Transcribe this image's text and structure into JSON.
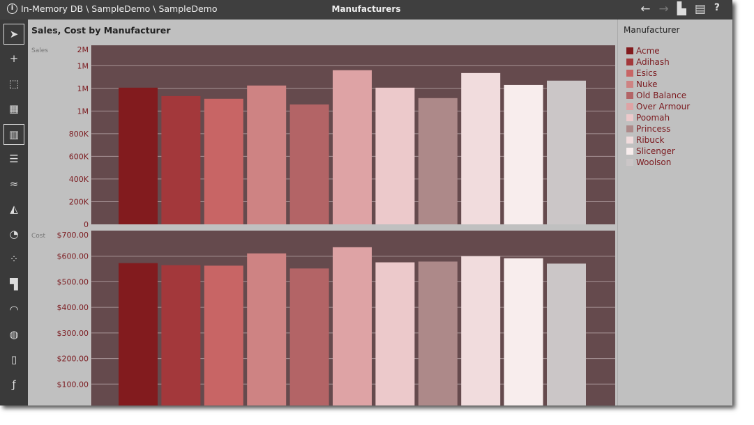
{
  "titlebar": {
    "breadcrumb": "In-Memory DB \\ SampleDemo \\ SampleDemo",
    "title": "Manufacturers",
    "icons": [
      "back-arrow-icon",
      "forward-arrow-icon",
      "save-icon",
      "print-icon",
      "help-icon"
    ]
  },
  "tools": [
    "pointer-icon",
    "add-pointer-icon",
    "select-region-icon",
    "pivot-grid-icon",
    "column-chart-icon",
    "bar-chart-icon",
    "line-chart-icon",
    "area-chart-icon",
    "pie-chart-icon",
    "scatter-icon",
    "treemap-icon",
    "gauge-icon",
    "map-icon",
    "card-icon",
    "formula-chart-icon"
  ],
  "legend": {
    "title": "Manufacturer"
  },
  "colors": {
    "plot_bg": "#654a4d",
    "axis_text": "#7b1a1f",
    "grid": "#a89597"
  },
  "chart_data": {
    "type": "bar",
    "title": "Sales, Cost by Manufacturer",
    "categories": [
      "Acme",
      "Adihash",
      "Esics",
      "Nuke",
      "Old Balance",
      "Over Armour",
      "Poomah",
      "Princess",
      "Ribuck",
      "Slicenger",
      "Woolson"
    ],
    "category_colors": [
      "#821b1e",
      "#a3383b",
      "#c86565",
      "#ce8383",
      "#b36466",
      "#dea3a5",
      "#ecc9cb",
      "#ad8989",
      "#f1dcdd",
      "#f8eded",
      "#cbc6c7"
    ],
    "panels": [
      {
        "name": "Sales",
        "ylim": [
          0,
          1580000
        ],
        "ticks": [
          {
            "v": 0,
            "l": "0"
          },
          {
            "v": 200000,
            "l": "200K"
          },
          {
            "v": 400000,
            "l": "400K"
          },
          {
            "v": 600000,
            "l": "600K"
          },
          {
            "v": 800000,
            "l": "800K"
          },
          {
            "v": 1000000,
            "l": "1M"
          },
          {
            "v": 1200000,
            "l": "1M"
          },
          {
            "v": 1400000,
            "l": "1M"
          },
          {
            "v": 1560000,
            "l": "2M"
          }
        ],
        "values": [
          1206000,
          1132000,
          1108000,
          1225000,
          1058000,
          1360000,
          1206000,
          1114000,
          1335000,
          1230000,
          1268000
        ]
      },
      {
        "name": "Cost",
        "ylim": [
          0,
          700
        ],
        "ticks": [
          {
            "v": 100,
            "l": "$100.00"
          },
          {
            "v": 200,
            "l": "$200.00"
          },
          {
            "v": 300,
            "l": "$300.00"
          },
          {
            "v": 400,
            "l": "$400.00"
          },
          {
            "v": 500,
            "l": "$500.00"
          },
          {
            "v": 600,
            "l": "$600.00"
          },
          {
            "v": 690,
            "l": "$700.00"
          }
        ],
        "values": [
          573,
          565,
          563,
          611,
          552,
          635,
          576,
          579,
          600,
          592,
          571
        ]
      }
    ]
  }
}
